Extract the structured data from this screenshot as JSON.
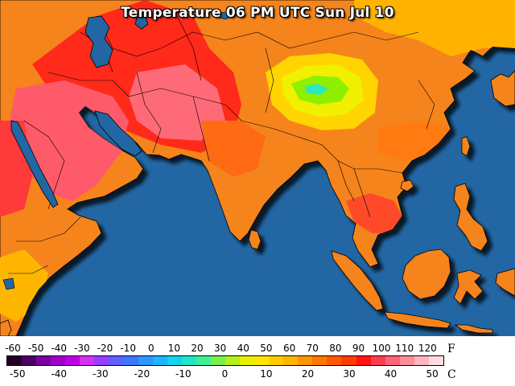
{
  "map": {
    "title": "Temperature 06 PM UTC Sun Jul 10",
    "ocean_color": "#2266a3",
    "land_base_color": "#f5841f"
  },
  "legend": {
    "fahrenheit_unit": "F",
    "celsius_unit": "C",
    "fahrenheit_ticks": [
      "-60",
      "-50",
      "-40",
      "-30",
      "-20",
      "-10",
      "0",
      "10",
      "20",
      "30",
      "40",
      "50",
      "60",
      "70",
      "80",
      "90",
      "100",
      "110",
      "120"
    ],
    "celsius_ticks": [
      "-50",
      "-40",
      "-30",
      "-20",
      "-10",
      "0",
      "10",
      "20",
      "30",
      "40",
      "50"
    ],
    "fahrenheit_range": [
      -60,
      130
    ],
    "celsius_values": [
      -50,
      -40,
      -30,
      -20,
      -10,
      0,
      10,
      20,
      30,
      40,
      50
    ],
    "color_stops": [
      "#220022",
      "#4b0064",
      "#7a00a0",
      "#a000c8",
      "#c000e6",
      "#d830f0",
      "#9b3cff",
      "#6060ff",
      "#3c78ff",
      "#2d96ff",
      "#1eb4ff",
      "#14d2f0",
      "#1ee6c8",
      "#3cf096",
      "#78f050",
      "#b4f014",
      "#e6f000",
      "#ffe600",
      "#ffcc00",
      "#ffb400",
      "#ff9600",
      "#ff7800",
      "#ff5a00",
      "#ff3c00",
      "#ff1414",
      "#ff3c50",
      "#ff6478",
      "#ff8c9a",
      "#ffb4be",
      "#ffdce2"
    ]
  }
}
